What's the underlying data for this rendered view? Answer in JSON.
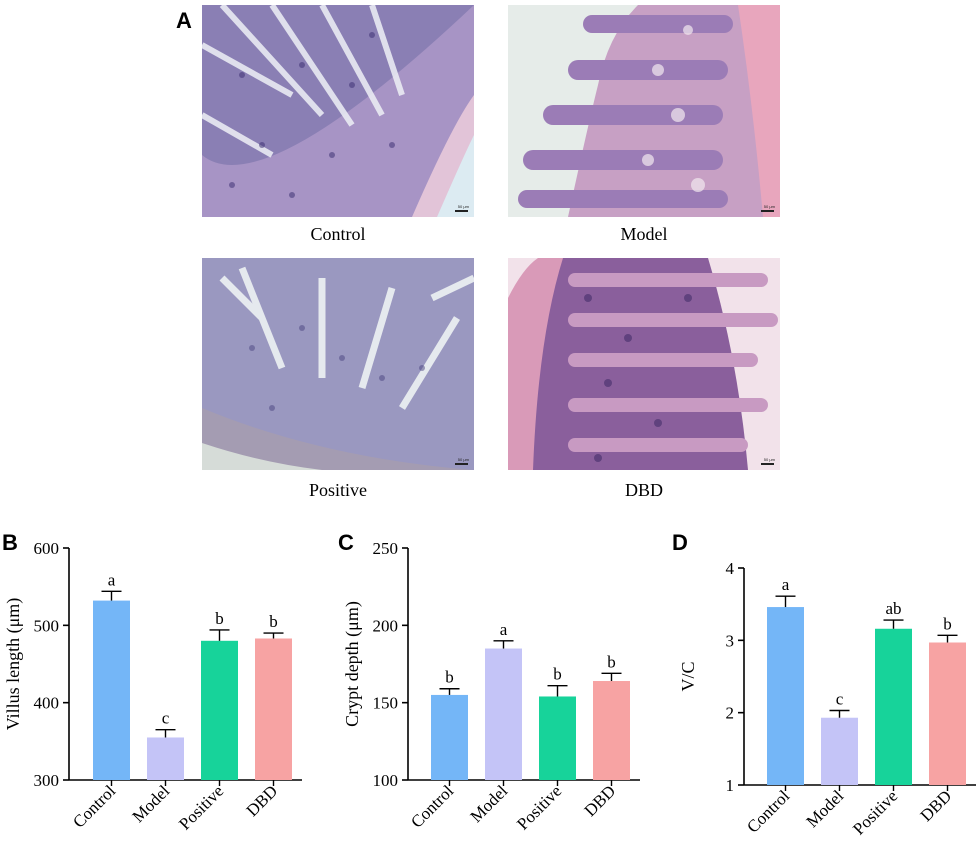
{
  "panel_a": {
    "letter": "A",
    "images": [
      {
        "caption": "Control",
        "scale": "50 μm"
      },
      {
        "caption": "Model",
        "scale": "50 μm"
      },
      {
        "caption": "Positive",
        "scale": "50 μm"
      },
      {
        "caption": "DBD",
        "scale": "50 μm"
      }
    ]
  },
  "chart_data": [
    {
      "panel": "B",
      "type": "bar",
      "categories": [
        "Control",
        "Model",
        "Positive",
        "DBD"
      ],
      "values": [
        532,
        355,
        480,
        483
      ],
      "errors": [
        12,
        10,
        14,
        7
      ],
      "letters": [
        "a",
        "c",
        "b",
        "b"
      ],
      "colors": [
        "#74b6f7",
        "#c4c4f7",
        "#17d39a",
        "#f7a3a3"
      ],
      "ylabel": "Villus length (μm)",
      "ylim": [
        300,
        600
      ],
      "yticks": [
        300,
        400,
        500,
        600
      ]
    },
    {
      "panel": "C",
      "type": "bar",
      "categories": [
        "Control",
        "Model",
        "Positive",
        "DBD"
      ],
      "values": [
        155,
        185,
        154,
        164
      ],
      "errors": [
        4,
        5,
        7,
        5
      ],
      "letters": [
        "b",
        "a",
        "b",
        "b"
      ],
      "colors": [
        "#74b6f7",
        "#c4c4f7",
        "#17d39a",
        "#f7a3a3"
      ],
      "ylabel": "Crypt depth (μm)",
      "ylim": [
        100,
        250
      ],
      "yticks": [
        100,
        150,
        200,
        250
      ]
    },
    {
      "panel": "D",
      "type": "bar",
      "categories": [
        "Control",
        "Model",
        "Positive",
        "DBD"
      ],
      "values": [
        3.46,
        1.93,
        3.16,
        2.97
      ],
      "errors": [
        0.15,
        0.1,
        0.12,
        0.1
      ],
      "letters": [
        "a",
        "c",
        "ab",
        "b"
      ],
      "colors": [
        "#74b6f7",
        "#c4c4f7",
        "#17d39a",
        "#f7a3a3"
      ],
      "ylabel": "V/C",
      "ylim": [
        1,
        4
      ],
      "yticks": [
        1,
        2,
        3,
        4
      ]
    }
  ]
}
